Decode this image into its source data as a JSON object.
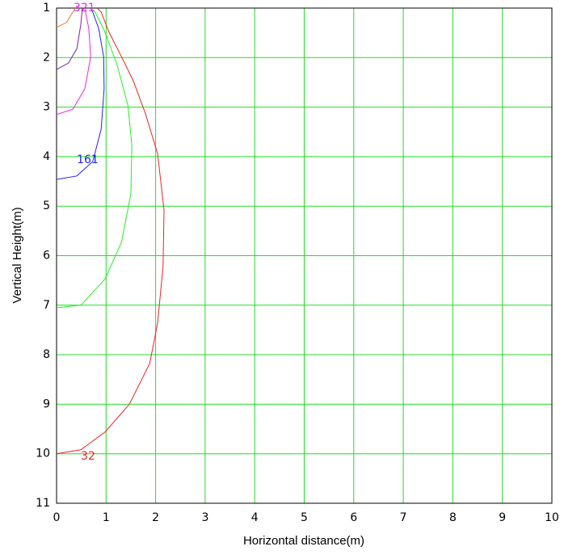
{
  "chart_data": {
    "type": "line",
    "x_label": "Horizontal distance(m)",
    "y_label": "Vertical Height(m)",
    "xlim": [
      0,
      10
    ],
    "xticks": [
      0,
      1,
      2,
      3,
      4,
      5,
      6,
      7,
      8,
      9,
      10
    ],
    "ylim": [
      1,
      11
    ],
    "yticks": [
      1,
      2,
      3,
      4,
      5,
      6,
      7,
      8,
      9,
      10,
      11
    ],
    "y_inverted": true,
    "grid": true,
    "grid_color": "#22dd22",
    "series": [
      {
        "label": "32",
        "color": "#ee2222",
        "x": [
          0,
          0.49,
          0.98,
          1.47,
          1.88,
          2.04,
          2.15,
          2.17,
          2.04,
          1.79,
          1.55,
          1.31,
          1.06,
          0.9,
          0.82
        ],
        "values": [
          10,
          9.92,
          9.56,
          9.0,
          8.18,
          7.36,
          6.22,
          5.08,
          3.94,
          3.12,
          2.47,
          1.98,
          1.49,
          1.08,
          1
        ]
      },
      {
        "color": "#22ee22",
        "x": [
          0,
          0.49,
          0.98,
          1.31,
          1.5,
          1.52,
          1.44,
          1.22,
          0.98,
          0.78,
          0.69
        ],
        "values": [
          7.05,
          7.0,
          6.47,
          5.73,
          4.75,
          3.77,
          2.96,
          2.14,
          1.49,
          1.08,
          1
        ]
      },
      {
        "label": "161",
        "color": "#2222ee",
        "x": [
          0,
          0.41,
          0.73,
          0.9,
          0.96,
          0.95,
          0.85,
          0.73,
          0.69
        ],
        "values": [
          4.46,
          4.39,
          4.1,
          3.45,
          2.63,
          1.98,
          1.41,
          1.08,
          1
        ]
      },
      {
        "label": "321",
        "color": "#ee22ee",
        "x": [
          0,
          0.33,
          0.57,
          0.69,
          0.65,
          0.57
        ],
        "values": [
          3.15,
          3.04,
          2.63,
          1.98,
          1.41,
          1
        ]
      },
      {
        "color": "#7722aa",
        "x": [
          0,
          0.24,
          0.41,
          0.49,
          0.52
        ],
        "values": [
          2.24,
          2.11,
          1.82,
          1.33,
          1
        ]
      },
      {
        "color": "#ee7722",
        "x": [
          0,
          0.2,
          0.33,
          0.38
        ],
        "values": [
          1.39,
          1.29,
          1.08,
          1
        ]
      }
    ]
  }
}
